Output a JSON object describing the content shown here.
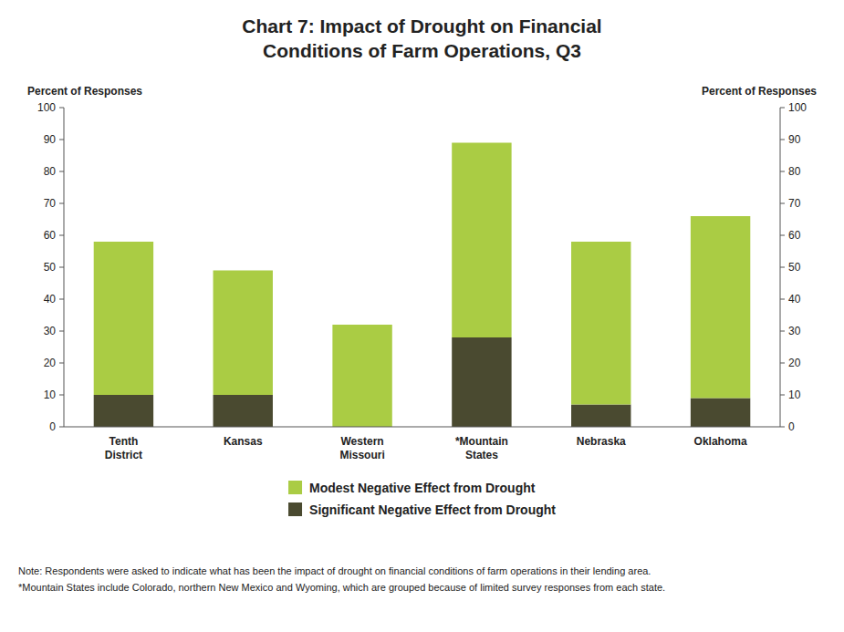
{
  "chart_data": {
    "type": "bar",
    "stacked": true,
    "title": "Chart 7: Impact of Drought on Financial\nConditions of Farm Operations, Q3",
    "categories": [
      "Tenth\nDistrict",
      "Kansas",
      "Western\nMissouri",
      "*Mountain\nStates",
      "Nebraska",
      "Oklahoma"
    ],
    "series": [
      {
        "name": "Significant Negative Effect from Drought",
        "color": "#4A4A30",
        "values": [
          10,
          10,
          0,
          28,
          7,
          9
        ]
      },
      {
        "name": "Modest Negative Effect from Drought",
        "color": "#AACC44",
        "values": [
          48,
          39,
          32,
          61,
          51,
          57
        ]
      }
    ],
    "y_label": "Percent of Responses",
    "y2_label": "Percent of Responses",
    "ylim": [
      0,
      100
    ],
    "yticks": [
      0,
      10,
      20,
      30,
      40,
      50,
      60,
      70,
      80,
      90,
      100
    ],
    "y2lim": [
      0,
      100
    ],
    "y2ticks": [
      0,
      10,
      20,
      30,
      40,
      50,
      60,
      70,
      80,
      90,
      100
    ],
    "grid": false,
    "legend": "bottom",
    "annotations": [
      "Note: Respondents were asked to indicate what has been the impact of drought on financial conditions of farm operations in their lending area.",
      "*Mountain States include Colorado, northern New Mexico and Wyoming, which are grouped because of limited survey responses from each state."
    ]
  }
}
